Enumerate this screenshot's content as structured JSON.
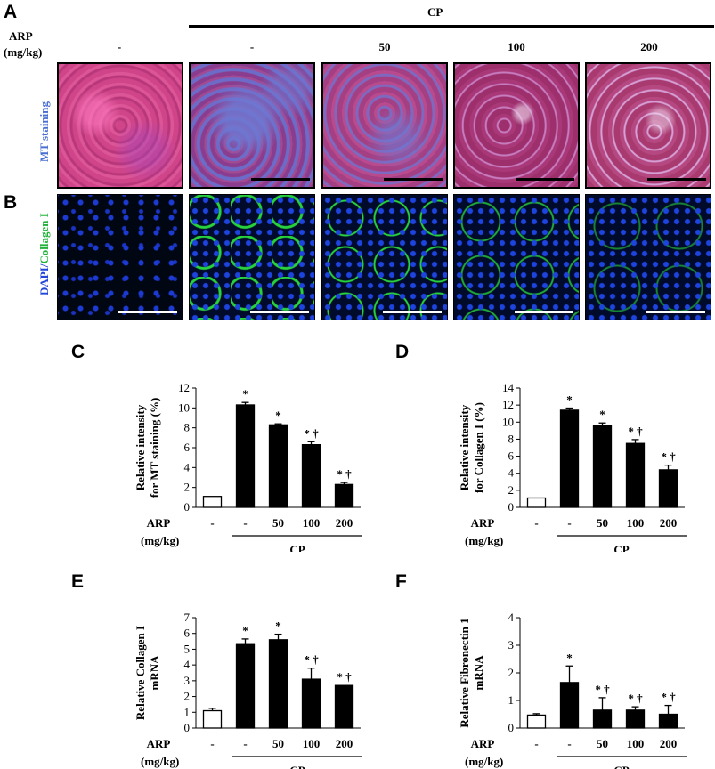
{
  "panel_letters": {
    "A": "A",
    "B": "B",
    "C": "C",
    "D": "D",
    "E": "E",
    "F": "F"
  },
  "top_group_label": "CP",
  "arp_label": "ARP",
  "unit_label": "(mg/kg)",
  "dose_labels": [
    "-",
    "-",
    "50",
    "100",
    "200"
  ],
  "row_a_label": "MT staining",
  "row_b_label_dapi": "DAPI",
  "row_b_label_sep": "/",
  "row_b_label_col": "Collagen I",
  "colors": {
    "mt_bg": "#c8417f",
    "mt_blue": "#6d67c4",
    "dapi": "#1e3fd8",
    "collagen": "#22d63a",
    "bar_control": "#ffffff",
    "bar_treated": "#000000"
  },
  "chart_data": [
    {
      "type": "bar",
      "panel": "C",
      "ylabel": [
        "Relative intensity",
        "for MT staining (%)"
      ],
      "ylim": [
        0,
        12
      ],
      "yticks": [
        0,
        2,
        4,
        6,
        8,
        10,
        12
      ],
      "categories": [
        "-",
        "-",
        "50",
        "100",
        "200"
      ],
      "values": [
        1.1,
        10.3,
        8.3,
        6.3,
        2.3
      ],
      "errors": [
        0.0,
        0.25,
        0.1,
        0.3,
        0.2
      ],
      "sig": [
        "",
        "*",
        "*",
        "* †",
        "* †"
      ],
      "group_label": "CP",
      "xlabel_row": "ARP",
      "unit": "(mg/kg)"
    },
    {
      "type": "bar",
      "panel": "D",
      "ylabel": [
        "Relative intensity",
        "for Collagen I  (%)"
      ],
      "ylim": [
        0,
        14
      ],
      "yticks": [
        0,
        2,
        4,
        6,
        8,
        10,
        12,
        14
      ],
      "categories": [
        "-",
        "-",
        "50",
        "100",
        "200"
      ],
      "values": [
        1.1,
        11.4,
        9.6,
        7.5,
        4.4
      ],
      "errors": [
        0.0,
        0.25,
        0.3,
        0.45,
        0.55
      ],
      "sig": [
        "",
        "*",
        "*",
        "* †",
        "* †"
      ],
      "group_label": "CP",
      "xlabel_row": "ARP",
      "unit": "(mg/kg)"
    },
    {
      "type": "bar",
      "panel": "E",
      "ylabel": [
        "Relative Collagen I",
        "mRNA"
      ],
      "ylim": [
        0,
        7
      ],
      "yticks": [
        0,
        1,
        2,
        3,
        4,
        5,
        6,
        7
      ],
      "categories": [
        "-",
        "-",
        "50",
        "100",
        "200"
      ],
      "values": [
        1.1,
        5.35,
        5.6,
        3.1,
        2.7
      ],
      "errors": [
        0.15,
        0.3,
        0.35,
        0.7,
        0.0
      ],
      "sig": [
        "",
        "*",
        "*",
        "* †",
        "* †"
      ],
      "group_label": "CP",
      "xlabel_row": "ARP",
      "unit": "(mg/kg)"
    },
    {
      "type": "bar",
      "panel": "F",
      "ylabel": [
        "Relative Fibronectin 1",
        "mRNA"
      ],
      "ylim": [
        0,
        4
      ],
      "yticks": [
        0,
        1,
        2,
        3,
        4
      ],
      "categories": [
        "-",
        "-",
        "50",
        "100",
        "200"
      ],
      "values": [
        0.47,
        1.65,
        0.65,
        0.65,
        0.5
      ],
      "errors": [
        0.05,
        0.6,
        0.45,
        0.12,
        0.32
      ],
      "sig": [
        "",
        "*",
        "* †",
        "* †",
        "* †"
      ],
      "group_label": "CP",
      "xlabel_row": "ARP",
      "unit": "(mg/kg)"
    }
  ]
}
